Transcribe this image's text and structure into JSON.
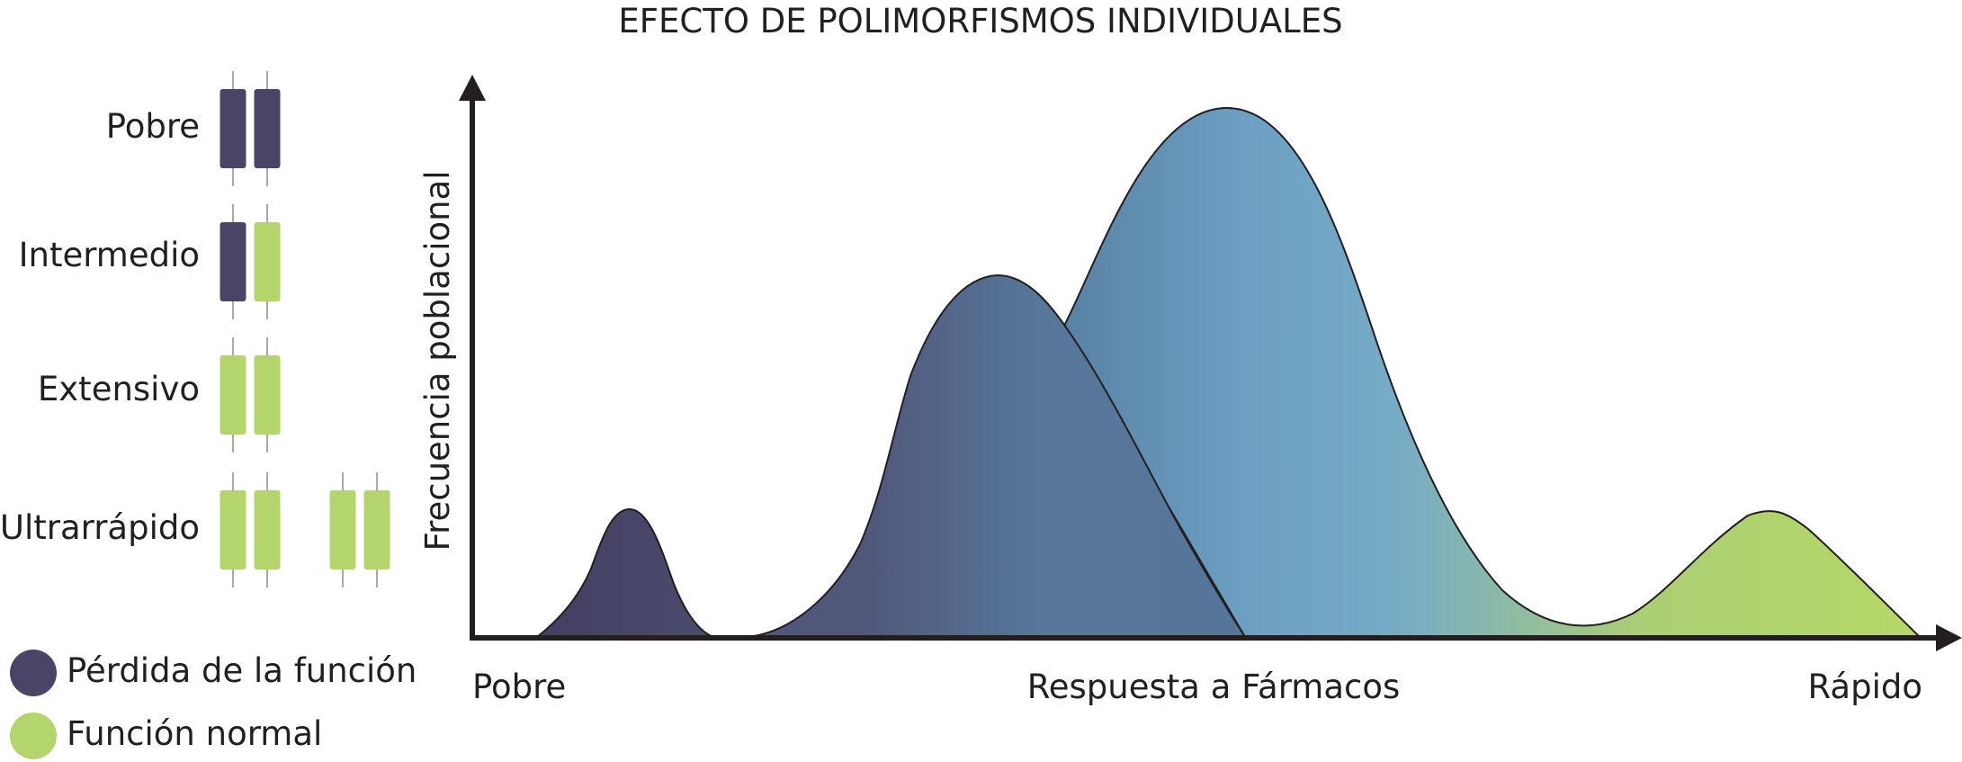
{
  "title": "EFECTO DE POLIMORFISMOS INDIVIDUALES",
  "phenotypes": [
    {
      "label": "Pobre",
      "alleles": [
        "loss",
        "loss"
      ]
    },
    {
      "label": "Intermedio",
      "alleles": [
        "loss",
        "normal"
      ]
    },
    {
      "label": "Extensivo",
      "alleles": [
        "normal",
        "normal"
      ]
    },
    {
      "label": "Ultrarrápido",
      "alleles": [
        "normal",
        "normal",
        "normal",
        "normal"
      ]
    }
  ],
  "legend": [
    {
      "label": "Pérdida de la función",
      "color": "#4a4466"
    },
    {
      "label": "Función normal",
      "color": "#b4d56b"
    }
  ],
  "axes": {
    "y_label": "Frecuencia poblacional",
    "x_label": "Respuesta a Fármacos",
    "x_start_label": "Pobre",
    "x_end_label": "Rápido"
  },
  "colors": {
    "loss": "#4a4466",
    "normal": "#b4d56b",
    "mid_blue": "#58779a",
    "light_blue": "#72a6c6",
    "outline": "#231f20"
  }
}
